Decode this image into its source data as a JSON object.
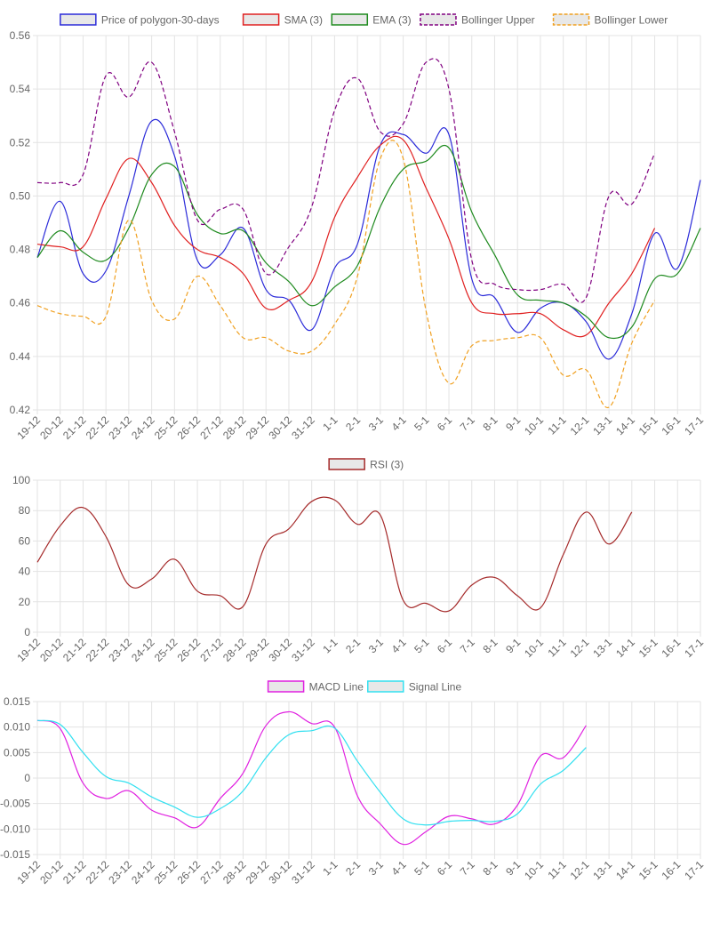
{
  "chart_data": [
    {
      "type": "line",
      "title": "",
      "xlabel": "",
      "ylabel": "",
      "categories": [
        "19-12",
        "20-12",
        "21-12",
        "22-12",
        "23-12",
        "24-12",
        "25-12",
        "26-12",
        "27-12",
        "28-12",
        "29-12",
        "30-12",
        "31-12",
        "1-1",
        "2-1",
        "3-1",
        "4-1",
        "5-1",
        "6-1",
        "7-1",
        "8-1",
        "9-1",
        "10-1",
        "11-1",
        "12-1",
        "13-1",
        "14-1",
        "15-1",
        "16-1",
        "17-1"
      ],
      "ylim": [
        0.42,
        0.56
      ],
      "yticks": [
        "0.42",
        "0.44",
        "0.46",
        "0.48",
        "0.50",
        "0.52",
        "0.54",
        "0.56"
      ],
      "grid": true,
      "legend_position": "top",
      "series": [
        {
          "name": "Price of polygon-30-days",
          "color": "#2b2bd9",
          "dash": false,
          "values": [
            0.477,
            0.498,
            0.471,
            0.472,
            0.5,
            0.528,
            0.515,
            0.476,
            0.478,
            0.488,
            0.465,
            0.461,
            0.45,
            0.473,
            0.482,
            0.519,
            0.523,
            0.516,
            0.523,
            0.469,
            0.462,
            0.449,
            0.458,
            0.46,
            0.453,
            0.439,
            0.456,
            0.486,
            0.473,
            0.506
          ]
        },
        {
          "name": "SMA (3)",
          "color": "#e02020",
          "dash": false,
          "values": [
            0.482,
            0.481,
            0.481,
            0.499,
            0.514,
            0.505,
            0.489,
            0.48,
            0.477,
            0.471,
            0.458,
            0.461,
            0.468,
            0.492,
            0.507,
            0.519,
            0.521,
            0.503,
            0.484,
            0.46,
            0.456,
            0.456,
            0.456,
            0.45,
            0.448,
            0.46,
            0.471,
            0.488,
            null,
            null
          ]
        },
        {
          "name": "EMA (3)",
          "color": "#1e8a1e",
          "dash": false,
          "values": [
            0.477,
            0.487,
            0.479,
            0.476,
            0.488,
            0.508,
            0.511,
            0.493,
            0.486,
            0.487,
            0.475,
            0.468,
            0.459,
            0.466,
            0.474,
            0.496,
            0.51,
            0.513,
            0.518,
            0.494,
            0.478,
            0.463,
            0.461,
            0.46,
            0.455,
            0.447,
            0.451,
            0.469,
            0.471,
            0.488
          ]
        },
        {
          "name": "Bollinger Upper",
          "color": "#800080",
          "dash": true,
          "values": [
            0.505,
            0.505,
            0.508,
            0.545,
            0.537,
            0.55,
            0.524,
            0.491,
            0.495,
            0.495,
            0.471,
            0.481,
            0.496,
            0.532,
            0.544,
            0.524,
            0.527,
            0.55,
            0.54,
            0.476,
            0.467,
            0.465,
            0.465,
            0.467,
            0.462,
            0.5,
            0.497,
            0.516,
            null,
            null
          ]
        },
        {
          "name": "Bollinger Lower",
          "color": "#f0a020",
          "dash": true,
          "values": [
            0.459,
            0.456,
            0.455,
            0.455,
            0.491,
            0.461,
            0.454,
            0.47,
            0.459,
            0.447,
            0.447,
            0.442,
            0.442,
            0.452,
            0.47,
            0.514,
            0.514,
            0.457,
            0.43,
            0.444,
            0.446,
            0.447,
            0.447,
            0.433,
            0.435,
            0.421,
            0.445,
            0.461,
            null,
            null
          ]
        }
      ]
    },
    {
      "type": "line",
      "title": "",
      "xlabel": "",
      "ylabel": "",
      "categories": [
        "19-12",
        "20-12",
        "21-12",
        "22-12",
        "23-12",
        "24-12",
        "25-12",
        "26-12",
        "27-12",
        "28-12",
        "29-12",
        "30-12",
        "31-12",
        "1-1",
        "2-1",
        "3-1",
        "4-1",
        "5-1",
        "6-1",
        "7-1",
        "8-1",
        "9-1",
        "10-1",
        "11-1",
        "12-1",
        "13-1",
        "14-1",
        "15-1",
        "16-1",
        "17-1"
      ],
      "ylim": [
        0,
        100
      ],
      "yticks": [
        "0",
        "20",
        "40",
        "60",
        "80",
        "100"
      ],
      "grid": true,
      "legend_position": "top",
      "series": [
        {
          "name": "RSI (3)",
          "color": "#a52a2a",
          "dash": false,
          "values": [
            46,
            70,
            82,
            63,
            31,
            35,
            48,
            27,
            24,
            17,
            58,
            68,
            86,
            87,
            71,
            77,
            21,
            19,
            14,
            31,
            36,
            24,
            16,
            51,
            79,
            58,
            79,
            null,
            null,
            null
          ]
        }
      ]
    },
    {
      "type": "line",
      "title": "",
      "xlabel": "",
      "ylabel": "",
      "categories": [
        "19-12",
        "20-12",
        "21-12",
        "22-12",
        "23-12",
        "24-12",
        "25-12",
        "26-12",
        "27-12",
        "28-12",
        "29-12",
        "30-12",
        "31-12",
        "1-1",
        "2-1",
        "3-1",
        "4-1",
        "5-1",
        "6-1",
        "7-1",
        "8-1",
        "9-1",
        "10-1",
        "11-1",
        "12-1",
        "13-1",
        "14-1",
        "15-1",
        "16-1",
        "17-1"
      ],
      "ylim": [
        -0.015,
        0.015
      ],
      "yticks": [
        "-0.015",
        "-0.010",
        "-0.005",
        "0",
        "0.005",
        "0.010",
        "0.015"
      ],
      "grid": true,
      "legend_position": "top",
      "series": [
        {
          "name": "MACD Line",
          "color": "#e020e0",
          "dash": false,
          "values": [
            0.0113,
            0.0097,
            -0.001,
            -0.004,
            -0.0025,
            -0.0063,
            -0.0078,
            -0.0096,
            -0.004,
            0.001,
            0.0103,
            0.013,
            0.0107,
            0.01,
            -0.0035,
            -0.009,
            -0.013,
            -0.0105,
            -0.0075,
            -0.008,
            -0.009,
            -0.0053,
            0.0043,
            0.004,
            0.0103,
            null,
            null,
            null,
            null,
            null
          ]
        },
        {
          "name": "Signal Line",
          "color": "#33e0f0",
          "dash": false,
          "values": [
            0.0113,
            0.0105,
            0.005,
            0.0003,
            -0.001,
            -0.0037,
            -0.0057,
            -0.0077,
            -0.006,
            -0.0025,
            0.004,
            0.0085,
            0.0093,
            0.0098,
            0.0033,
            -0.0028,
            -0.008,
            -0.0092,
            -0.0085,
            -0.0083,
            -0.0085,
            -0.007,
            -0.0012,
            0.0015,
            0.006,
            null,
            null,
            null,
            null,
            null
          ]
        }
      ]
    }
  ]
}
